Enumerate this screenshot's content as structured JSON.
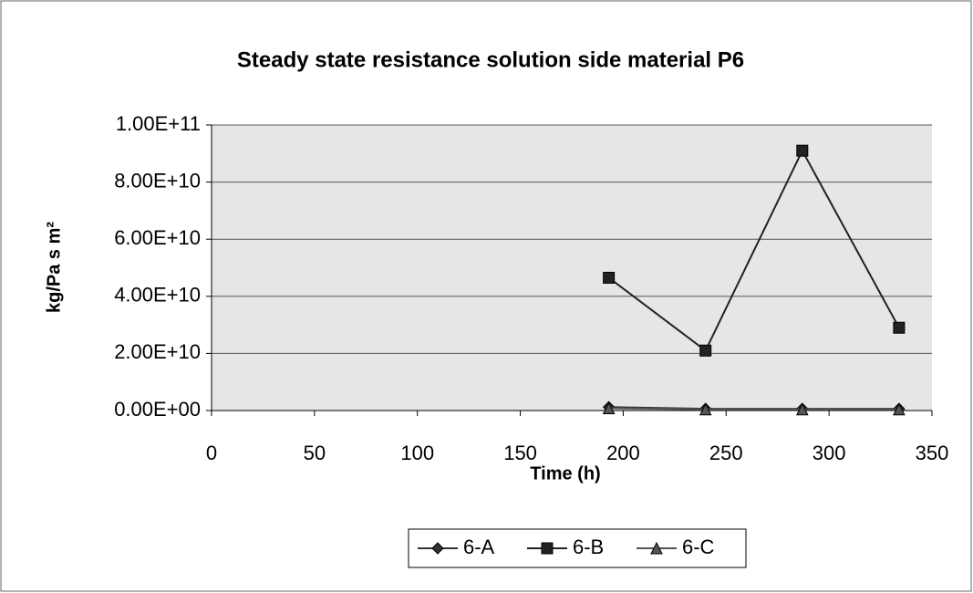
{
  "chart_data": {
    "type": "line",
    "title": "Steady state resistance solution side material P6",
    "x_label": "Time (h)",
    "y_label": "kg/Pa s m²",
    "x": [
      193,
      240,
      287,
      334
    ],
    "series": [
      {
        "name": "6-A",
        "color": "#333333",
        "marker": "diamond",
        "values": [
          1200000000,
          600000000,
          600000000,
          600000000
        ]
      },
      {
        "name": "6-B",
        "color": "#222222",
        "marker": "square",
        "values": [
          46500000000,
          21000000000,
          91000000000,
          29000000000
        ]
      },
      {
        "name": "6-C",
        "color": "#555555",
        "marker": "triangle",
        "values": [
          800000000,
          400000000,
          400000000,
          400000000
        ]
      }
    ],
    "xlim": [
      0,
      350
    ],
    "xticks": [
      0,
      50,
      100,
      150,
      200,
      250,
      300,
      350
    ],
    "ylim": [
      0,
      100000000000
    ],
    "yticks": [
      {
        "value": 0,
        "label": "0.00E+00"
      },
      {
        "value": 20000000000,
        "label": "2.00E+10"
      },
      {
        "value": 40000000000,
        "label": "4.00E+10"
      },
      {
        "value": 60000000000,
        "label": "6.00E+10"
      },
      {
        "value": 80000000000,
        "label": "8.00E+10"
      },
      {
        "value": 100000000000,
        "label": "1.00E+11"
      }
    ],
    "grid": true,
    "legend": "bottom"
  }
}
